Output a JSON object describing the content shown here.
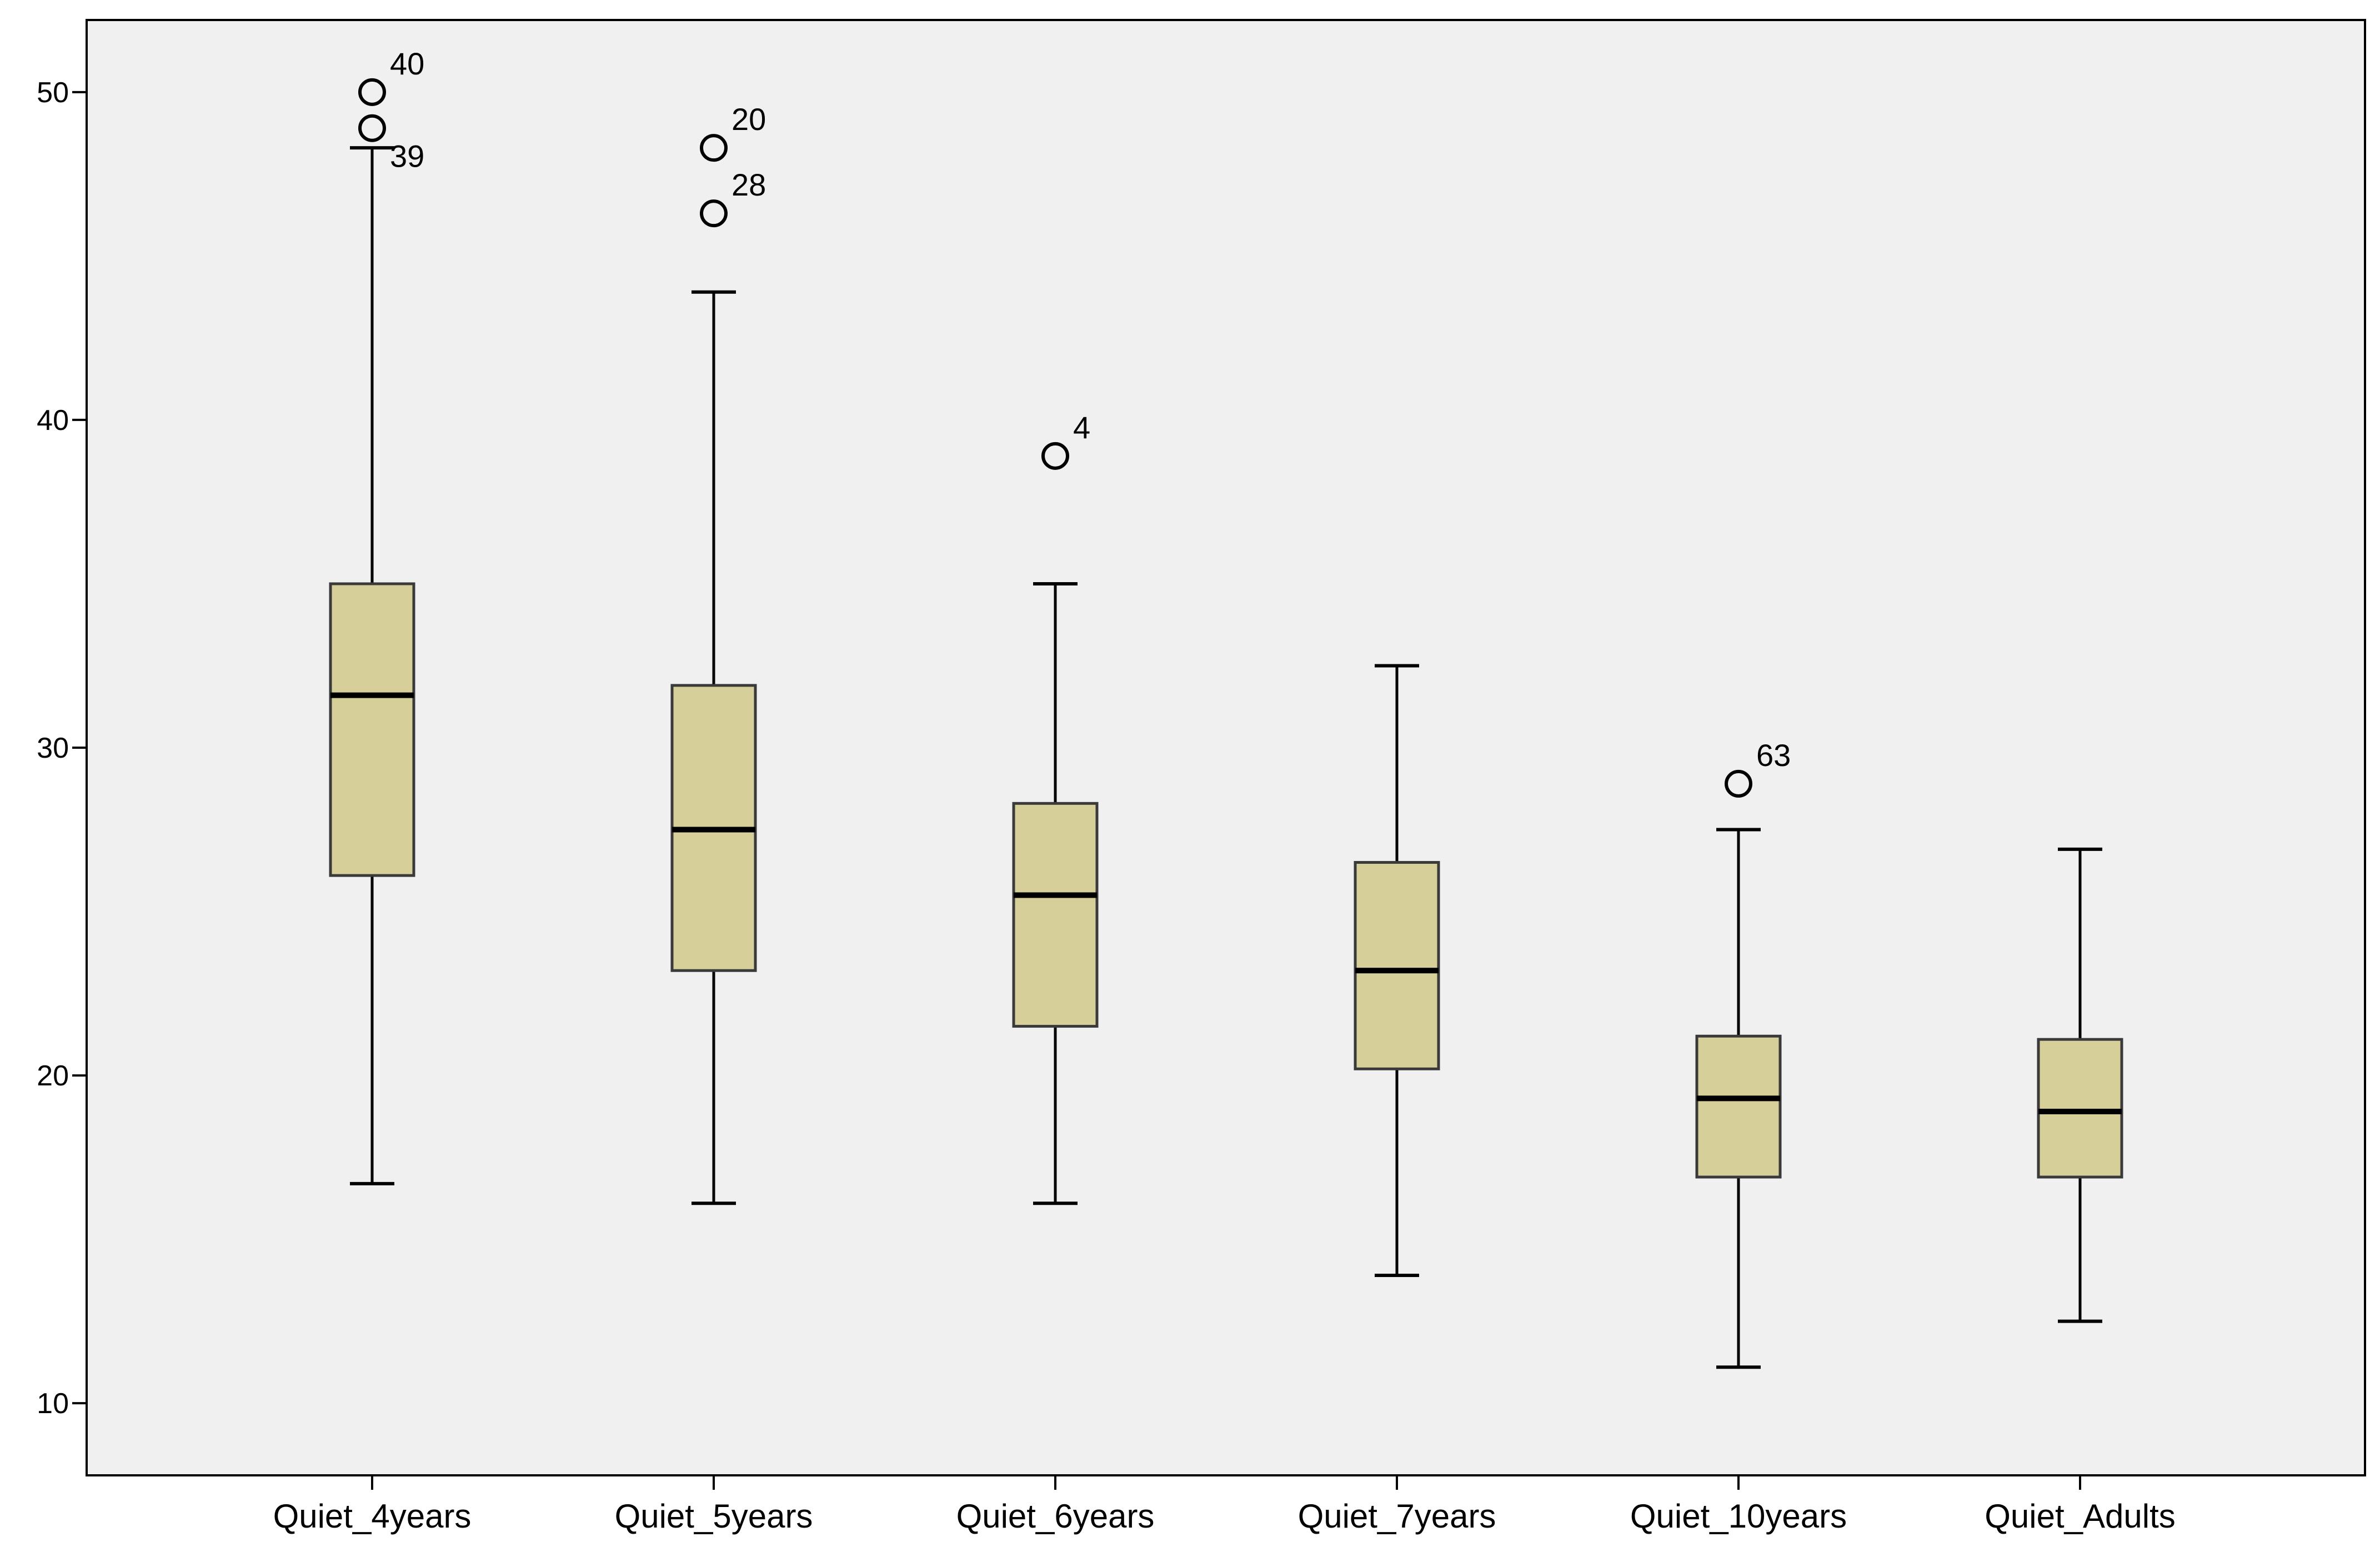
{
  "chart_data": {
    "type": "box",
    "title": "",
    "xlabel": "",
    "ylabel": "",
    "ylim": [
      7.8,
      52.2
    ],
    "yticks": [
      10,
      20,
      30,
      40,
      50
    ],
    "grid": false,
    "legend": "none",
    "colors": {
      "box_fill": "#d6cf99",
      "box_stroke": "#3a3a3a",
      "plot_background": "#f0f0f0",
      "median": "#000000",
      "axis": "#000000"
    },
    "categories": [
      "Quiet_4years",
      "Quiet_5years",
      "Quiet_6years",
      "Quiet_7years",
      "Quiet_10years",
      "Quiet_Adults"
    ],
    "boxes": [
      {
        "min": 16.7,
        "q1": 26.1,
        "median": 31.6,
        "q3": 35.0,
        "max": 48.3,
        "outliers": [
          {
            "value": 50.0,
            "label": "40"
          },
          {
            "value": 48.9,
            "label": "39"
          }
        ]
      },
      {
        "min": 16.1,
        "q1": 23.2,
        "median": 27.5,
        "q3": 31.9,
        "max": 43.9,
        "outliers": [
          {
            "value": 48.3,
            "label": "20"
          },
          {
            "value": 46.3,
            "label": "28"
          }
        ]
      },
      {
        "min": 16.1,
        "q1": 21.5,
        "median": 25.5,
        "q3": 28.3,
        "max": 35.0,
        "outliers": [
          {
            "value": 38.9,
            "label": "4"
          }
        ]
      },
      {
        "min": 13.9,
        "q1": 20.2,
        "median": 23.2,
        "q3": 26.5,
        "max": 32.5,
        "outliers": []
      },
      {
        "min": 11.1,
        "q1": 16.9,
        "median": 19.3,
        "q3": 21.2,
        "max": 27.5,
        "outliers": [
          {
            "value": 28.9,
            "label": "63"
          }
        ]
      },
      {
        "min": 12.5,
        "q1": 16.9,
        "median": 18.9,
        "q3": 21.1,
        "max": 26.9,
        "outliers": []
      }
    ]
  }
}
